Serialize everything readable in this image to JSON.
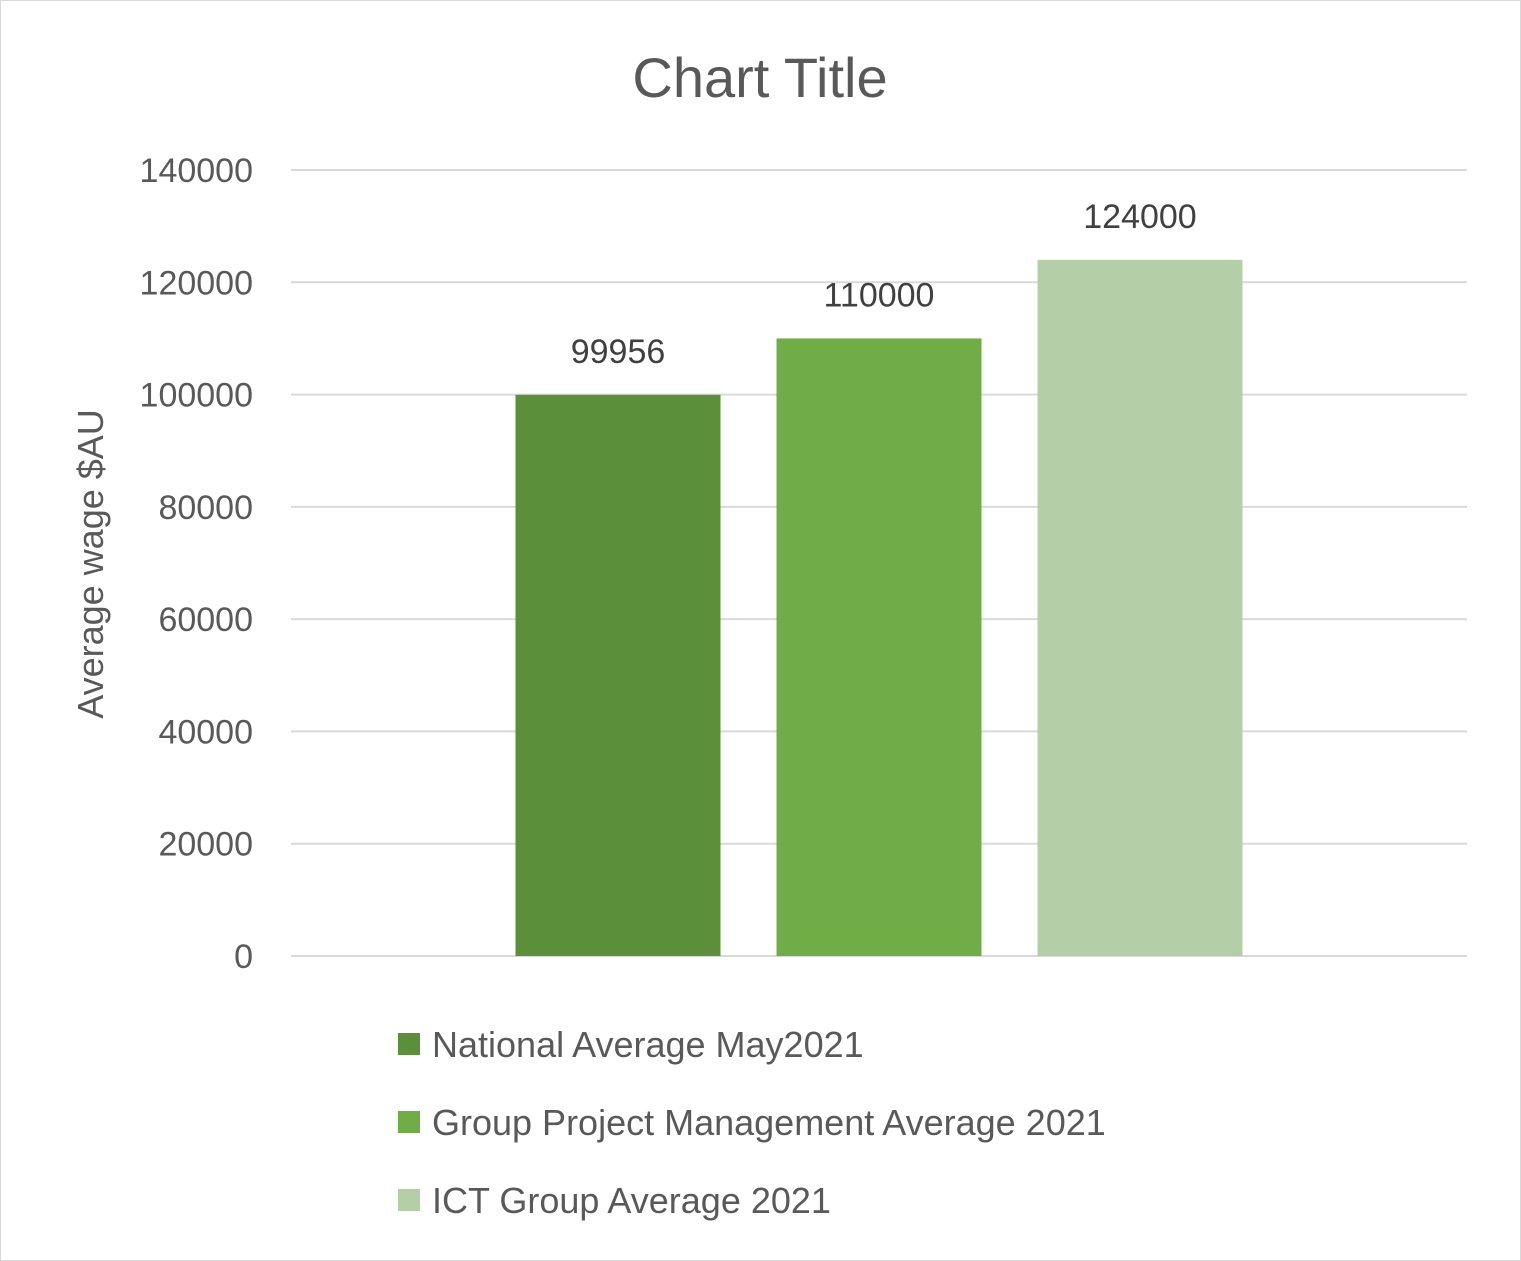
{
  "chart_data": {
    "type": "bar",
    "title": "Chart Title",
    "ylabel": "Average wage $AU",
    "xlabel": "",
    "ylim": [
      0,
      140000
    ],
    "y_ticks": [
      0,
      20000,
      40000,
      60000,
      80000,
      100000,
      120000,
      140000
    ],
    "y_tick_labels": [
      "0",
      "20000",
      "40000",
      "60000",
      "80000",
      "100000",
      "120000",
      "140000"
    ],
    "grid": true,
    "legend_position": "bottom",
    "series": [
      {
        "name": "National Average May2021",
        "value": 99956,
        "label": "99956",
        "color": "#5b8f3a"
      },
      {
        "name": "Group Project Management Average 2021",
        "value": 110000,
        "label": "110000",
        "color": "#70ad47"
      },
      {
        "name": "ICT Group Average 2021",
        "value": 124000,
        "label": "124000",
        "color": "#b4cfa7"
      }
    ]
  }
}
